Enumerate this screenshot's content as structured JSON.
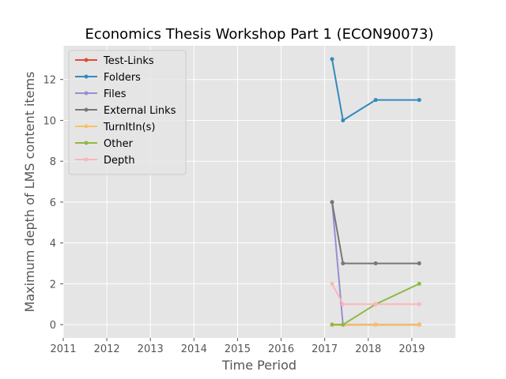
{
  "chart_data": {
    "type": "line",
    "title": "Economics Thesis Workshop Part 1 (ECON90073)",
    "xlabel": "Time Period",
    "ylabel": "Maximum depth of LMS content items",
    "xlim": [
      2011,
      2020
    ],
    "ylim": [
      -0.65,
      13.65
    ],
    "x_ticks": [
      2011,
      2012,
      2013,
      2014,
      2015,
      2016,
      2017,
      2018,
      2019
    ],
    "y_ticks": [
      0,
      2,
      4,
      6,
      8,
      10,
      12
    ],
    "grid": true,
    "legend_position": "top-left",
    "series": [
      {
        "name": "Test-Links",
        "color": "#E24A33",
        "x": [
          2017.17,
          2017.42,
          2018.17,
          2019.17
        ],
        "y": [
          0,
          0,
          0,
          0
        ]
      },
      {
        "name": "Folders",
        "color": "#348ABD",
        "x": [
          2017.17,
          2017.42,
          2018.17,
          2019.17
        ],
        "y": [
          13,
          10,
          11,
          11
        ]
      },
      {
        "name": "Files",
        "color": "#988ED5",
        "x": [
          2017.17,
          2017.42,
          2018.17,
          2019.17
        ],
        "y": [
          6,
          0,
          0,
          0
        ]
      },
      {
        "name": "External Links",
        "color": "#777777",
        "x": [
          2017.17,
          2017.42,
          2018.17,
          2019.17
        ],
        "y": [
          6,
          3,
          3,
          3
        ]
      },
      {
        "name": "TurnItIn(s)",
        "color": "#FBC15E",
        "x": [
          2017.17,
          2017.42,
          2018.17,
          2019.17
        ],
        "y": [
          0,
          0,
          0,
          0
        ]
      },
      {
        "name": "Other",
        "color": "#8EBA42",
        "x": [
          2017.17,
          2017.42,
          2018.17,
          2019.17
        ],
        "y": [
          0,
          0,
          1,
          2
        ]
      },
      {
        "name": "Depth",
        "color": "#FFB5B8",
        "x": [
          2017.17,
          2017.42,
          2018.17,
          2019.17
        ],
        "y": [
          2,
          1,
          1,
          1
        ]
      }
    ]
  }
}
